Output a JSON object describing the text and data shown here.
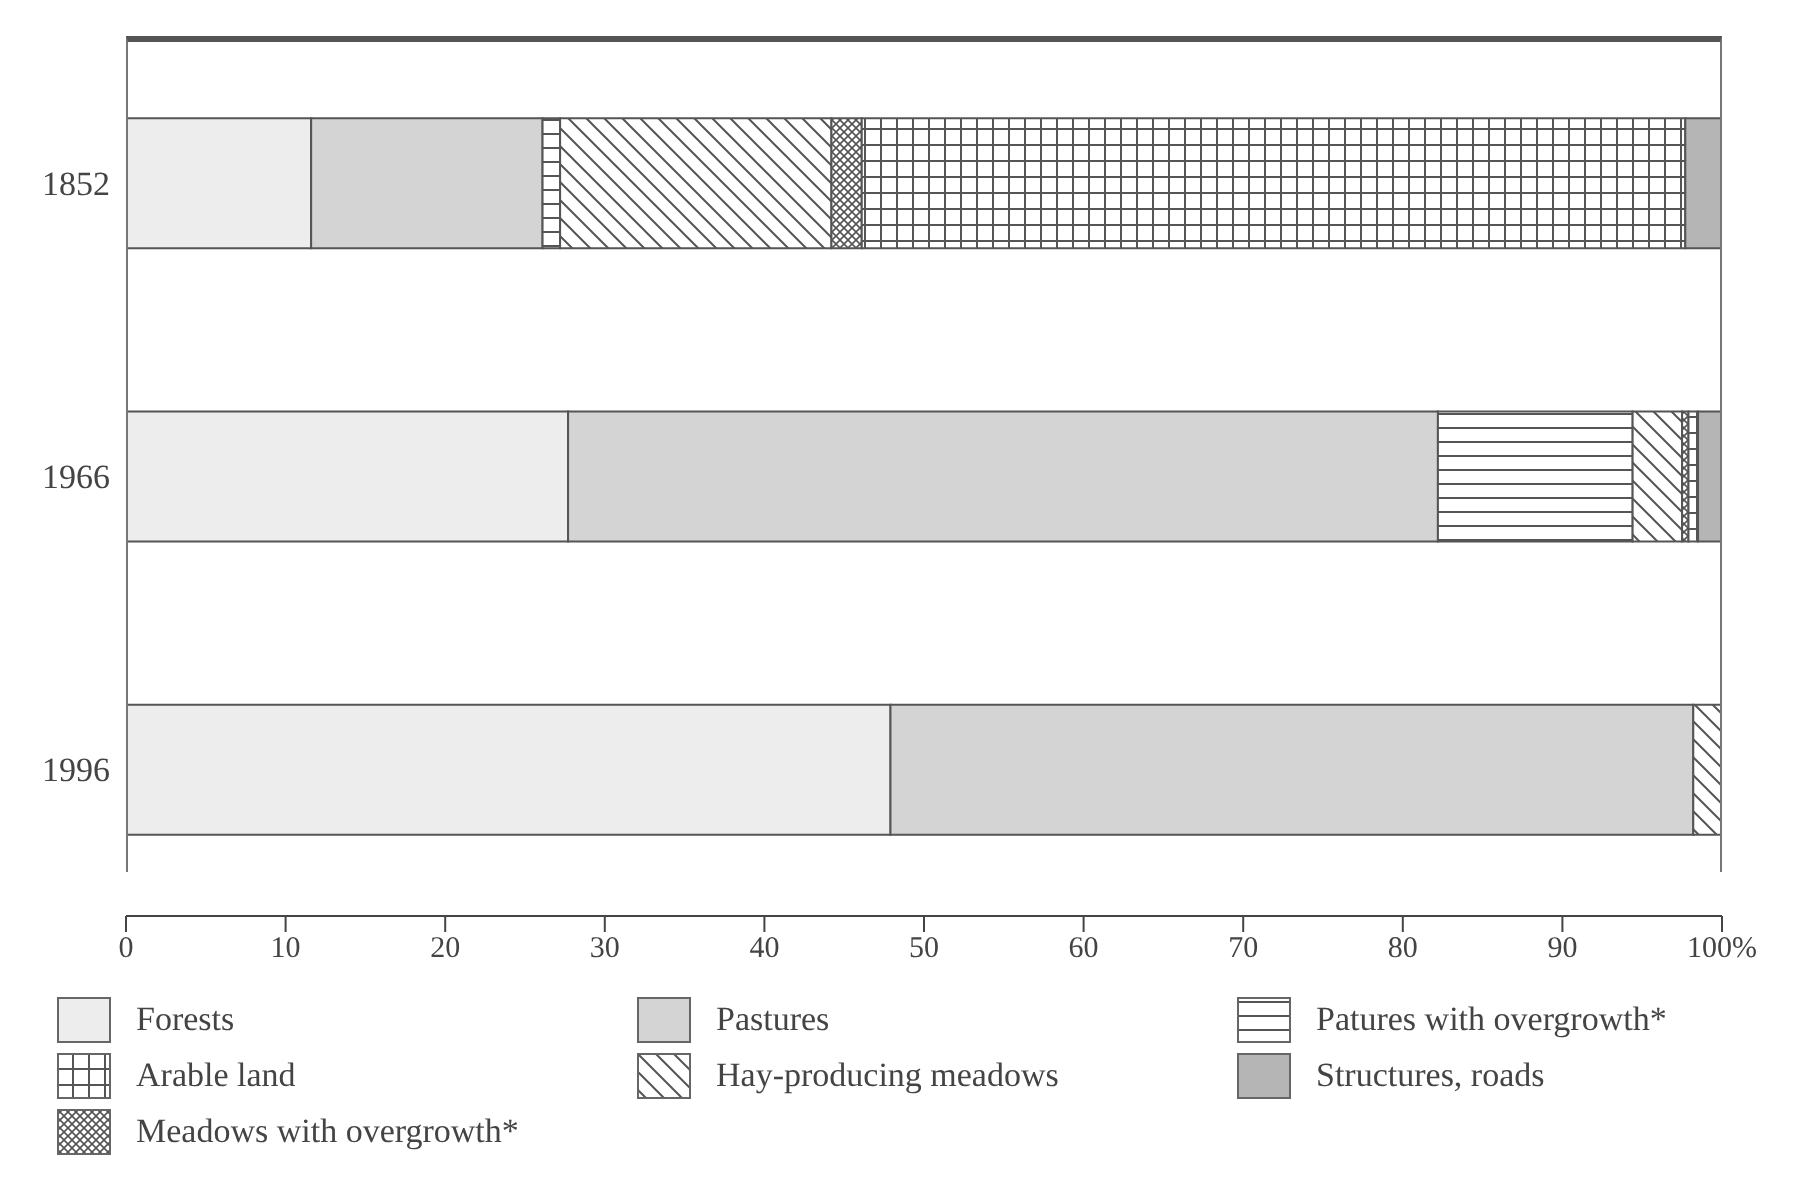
{
  "chart_data": {
    "type": "bar",
    "orientation": "horizontal",
    "stacked": true,
    "categories": [
      "1852",
      "1966",
      "1996"
    ],
    "series": [
      {
        "name": "Forests",
        "color": "#ededed",
        "values": [
          11.6,
          27.7,
          47.9
        ]
      },
      {
        "name": "Pastures",
        "color": "#d4d4d4",
        "values": [
          14.5,
          54.5,
          50.3
        ]
      },
      {
        "name": "Patures with overgrowth*",
        "color": "#555555",
        "values": [
          1.1,
          12.2,
          null
        ]
      },
      {
        "name": "Hay-producing meadows",
        "color": "#555555",
        "values": [
          17.0,
          3.1,
          1.8
        ]
      },
      {
        "name": "Meadows with overgrowth*",
        "color": "#555555",
        "values": [
          1.9,
          0.4,
          null
        ]
      },
      {
        "name": "Arable land",
        "color": "#555555",
        "values": [
          51.6,
          0.6,
          null
        ]
      },
      {
        "name": "Structures, roads",
        "color": "#b5b5b5",
        "values": [
          2.3,
          1.5,
          null
        ]
      }
    ],
    "xlim": [
      0,
      100
    ],
    "xticks": [
      0,
      10,
      20,
      30,
      40,
      50,
      60,
      70,
      80,
      90,
      {
        "value": 100,
        "label": "100%"
      }
    ],
    "legend": "bottom"
  }
}
